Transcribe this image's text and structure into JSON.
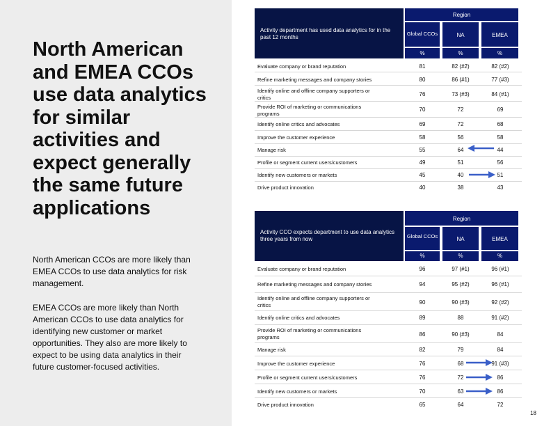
{
  "left": {
    "headline": "North American and EMEA CCOs use data analytics for similar activities and expect generally the same future applications",
    "paragraph1": "North American CCOs are more likely than EMEA CCOs to use data analytics for risk management.",
    "paragraph2": "EMEA CCOs are more likely than North American CCOs to use data analytics for identifying new customer or market opportunities. They also are more likely to expect to be using data analytics in their future customer-focused activities."
  },
  "table1": {
    "header": "Activity department has used data analytics for in the past 12 months",
    "region_label": "Region",
    "columns": [
      "Global CCOs",
      "NA",
      "EMEA"
    ],
    "units": [
      "%",
      "%",
      "%"
    ],
    "rows": [
      {
        "label": "Evaluate company or brand reputation",
        "global": "81",
        "na": "82 (#2)",
        "emea": "82 (#2)"
      },
      {
        "label": "Refine marketing messages and company stories",
        "global": "80",
        "na": "86 (#1)",
        "emea": "77 (#3)"
      },
      {
        "label": "Identify online and offline company supporters or critics",
        "global": "76",
        "na": "73 (#3)",
        "emea": "84 (#1)"
      },
      {
        "label": "Provide ROI of marketing or communications programs",
        "global": "70",
        "na": "72",
        "emea": "69"
      },
      {
        "label": "Identify online critics and advocates",
        "global": "69",
        "na": "72",
        "emea": "68"
      },
      {
        "label": "Improve the customer experience",
        "global": "58",
        "na": "56",
        "emea": "58"
      },
      {
        "label": "Manage risk",
        "global": "55",
        "na": "64",
        "emea": "44"
      },
      {
        "label": "Profile or segment current users/customers",
        "global": "49",
        "na": "51",
        "emea": "56"
      },
      {
        "label": "Identify new customers or markets",
        "global": "45",
        "na": "40",
        "emea": "51"
      },
      {
        "label": "Drive product innovation",
        "global": "40",
        "na": "38",
        "emea": "43"
      }
    ]
  },
  "table2": {
    "header": "Activity CCO expects department to use data analytics three years from now",
    "region_label": "Region",
    "columns": [
      "Global CCOs",
      "NA",
      "EMEA"
    ],
    "units": [
      "%",
      "%",
      "%"
    ],
    "rows": [
      {
        "label": "Evaluate company or brand reputation",
        "global": "96",
        "na": "97 (#1)",
        "emea": "96 (#1)"
      },
      {
        "label": "Refine marketing messages and company stories",
        "global": "94",
        "na": "95 (#2)",
        "emea": "96 (#1)"
      },
      {
        "label": "Identify online and offline company supporters or critics",
        "global": "90",
        "na": "90 (#3)",
        "emea": "92 (#2)"
      },
      {
        "label": "Identify online critics and advocates",
        "global": "89",
        "na": "88",
        "emea": "91 (#2)"
      },
      {
        "label": "Provide ROI of marketing or communications programs",
        "global": "86",
        "na": "90 (#3)",
        "emea": "84"
      },
      {
        "label": "Manage risk",
        "global": "82",
        "na": "79",
        "emea": "84"
      },
      {
        "label": "Improve the customer experience",
        "global": "76",
        "na": "68",
        "emea": "91 (#3)"
      },
      {
        "label": "Profile or segment current users/customers",
        "global": "76",
        "na": "72",
        "emea": "86"
      },
      {
        "label": "Identify new customers or markets",
        "global": "70",
        "na": "63",
        "emea": "86"
      },
      {
        "label": "Drive product innovation",
        "global": "65",
        "na": "64",
        "emea": "72"
      }
    ]
  },
  "page_number": "18",
  "colors": {
    "header_blue": "#0a1a6e",
    "header_dark": "#071445",
    "arrow_blue": "#3a5fc8",
    "panel_gray": "#ededed"
  }
}
